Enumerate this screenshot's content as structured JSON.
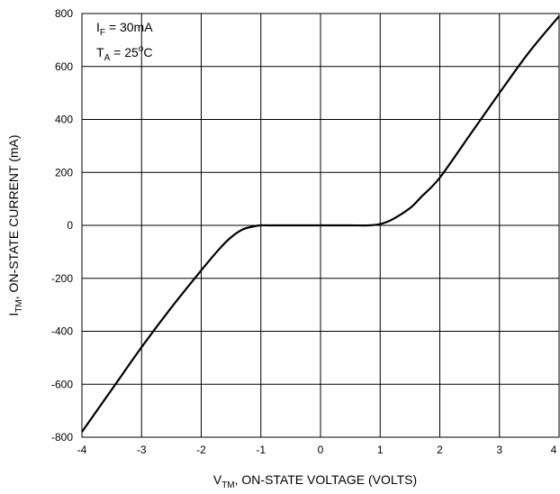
{
  "chart_data": {
    "type": "line",
    "title": "",
    "xlabel": {
      "main": "V",
      "sub": "TM",
      "rest": ", ON-STATE VOLTAGE (VOLTS)"
    },
    "ylabel": {
      "main": "I",
      "sub": "TM",
      "rest": ", ON-STATE CURRENT (mA)"
    },
    "xlim": [
      -4,
      4
    ],
    "ylim": [
      -800,
      800
    ],
    "xticks": [
      "-4",
      "-3",
      "-2",
      "-1",
      "0",
      "1",
      "2",
      "3",
      "4"
    ],
    "yticks": [
      "800",
      "600",
      "400",
      "200",
      "0",
      "-200",
      "-400",
      "-600",
      "-800"
    ],
    "grid": true,
    "annotations": {
      "line1": {
        "main": "I",
        "sub": "F",
        "rest": " = 30mA"
      },
      "line2": {
        "main": "T",
        "sub": "A",
        "rest": " = 25",
        "sup": "o",
        "tail": "C"
      }
    },
    "series": [
      {
        "color": "#000000",
        "x": [
          -4.0,
          -3.5,
          -3.0,
          -2.5,
          -2.0,
          -1.7,
          -1.5,
          -1.3,
          -1.1,
          -1.0,
          -0.8,
          -0.5,
          0.0,
          0.5,
          0.8,
          1.0,
          1.2,
          1.5,
          1.7,
          2.0,
          2.5,
          3.0,
          3.5,
          4.0
        ],
        "y": [
          -780,
          -620,
          -460,
          -310,
          -170,
          -90,
          -45,
          -15,
          -3,
          0,
          0,
          0,
          0,
          0,
          0,
          5,
          22,
          65,
          110,
          180,
          340,
          500,
          655,
          790
        ]
      }
    ]
  }
}
